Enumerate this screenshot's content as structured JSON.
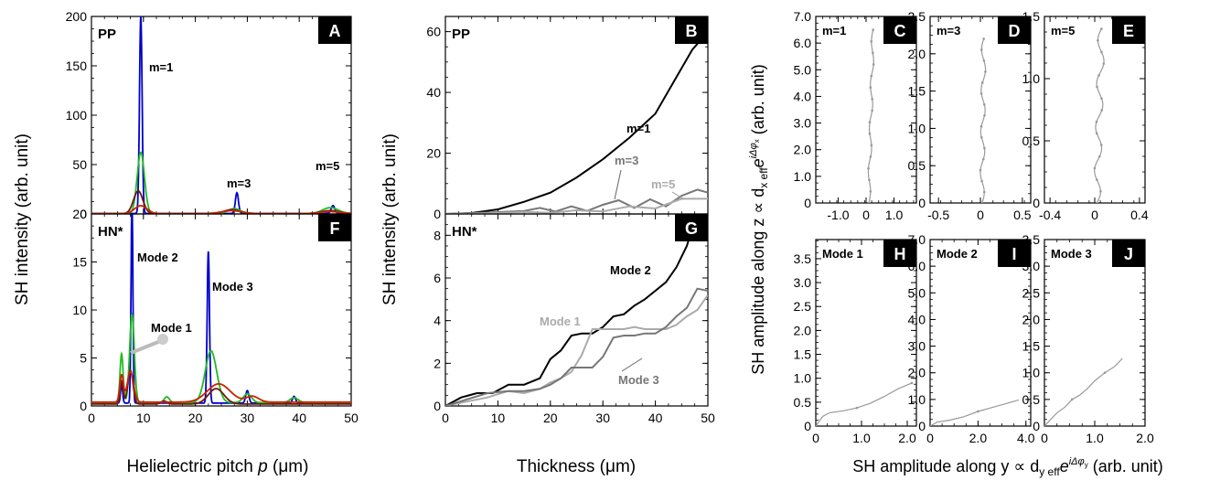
{
  "colors": {
    "blue": "#0000cc",
    "green": "#22bb22",
    "red": "#cc2200",
    "dark": "#6b1a10",
    "black": "#000000",
    "gray": "#777777",
    "lightgray": "#aaaaaa",
    "trace": "#999999"
  },
  "labels": {
    "pitch_axis_left": "Helielectric pitch ",
    "pitch_axis_var": "p",
    "pitch_axis_unit": " (μm)",
    "sh_intensity": "SH intensity (arb. unit)",
    "thickness_axis": "Thickness (μm)",
    "amp_y": "SH amplitude along y ∝ d",
    "amp_y_sub": "y eff",
    "amp_y_exp": "iΔφ",
    "amp_y_exp_sub": "y",
    "amp_y_tail": " (arb. unit)",
    "amp_z": "SH amplitude along z ∝ d",
    "amp_z_sub": "x eff",
    "amp_z_exp": "iΔφ",
    "amp_z_exp_sub": "x",
    "e": "e"
  },
  "chart_data": [
    {
      "id": "A",
      "type": "line",
      "title": "PP",
      "xlim": [
        0,
        50
      ],
      "ylim": [
        0,
        200
      ],
      "xticks": [
        0,
        10,
        20,
        30,
        40,
        50
      ],
      "yticks": [
        0,
        50,
        100,
        150,
        200
      ],
      "annotations": [
        "m=1",
        "m=3",
        "m=5"
      ],
      "series": [
        {
          "name": "blue",
          "peaks": [
            [
              9.5,
              200,
              0.25
            ],
            [
              28,
              21,
              0.3
            ],
            [
              46.5,
              8,
              0.35
            ]
          ],
          "baseline": 0.5
        },
        {
          "name": "green",
          "peaks": [
            [
              9.5,
              62,
              0.7
            ],
            [
              27.5,
              5,
              1.2
            ],
            [
              46,
              6,
              1.5
            ]
          ],
          "baseline": 0.4
        },
        {
          "name": "dark",
          "peaks": [
            [
              9,
              23,
              0.9
            ],
            [
              27,
              4,
              1.5
            ],
            [
              46,
              3,
              1.8
            ]
          ],
          "baseline": 0.3
        },
        {
          "name": "red",
          "peaks": [
            [
              9.5,
              8,
              1.2
            ],
            [
              27,
              3,
              2
            ],
            [
              46,
              2,
              2
            ]
          ],
          "baseline": 0.3
        }
      ]
    },
    {
      "id": "F",
      "type": "line",
      "title": "HN*",
      "xlim": [
        0,
        50
      ],
      "ylim": [
        0,
        20
      ],
      "xticks": [
        0,
        10,
        20,
        30,
        40,
        50
      ],
      "yticks": [
        0,
        5,
        10,
        15,
        20
      ],
      "annotations": [
        "Mode 2",
        "Mode 3",
        "Mode 1"
      ],
      "series": [
        {
          "name": "blue",
          "peaks": [
            [
              7.8,
              21,
              0.18
            ],
            [
              22.5,
              15.8,
              0.22
            ],
            [
              30,
              1.3,
              0.3
            ],
            [
              5.8,
              2,
              0.2
            ],
            [
              39,
              0.7,
              0.3
            ]
          ],
          "baseline": 0.3
        },
        {
          "name": "green",
          "peaks": [
            [
              7.8,
              9.2,
              0.45
            ],
            [
              5.8,
              5.1,
              0.3
            ],
            [
              23,
              5.4,
              1.1
            ],
            [
              30,
              0.9,
              0.8
            ],
            [
              14.5,
              0.6,
              0.5
            ],
            [
              39,
              0.5,
              0.8
            ]
          ],
          "baseline": 0.35
        },
        {
          "name": "dark",
          "peaks": [
            [
              7.5,
              3.5,
              0.5
            ],
            [
              5.8,
              2.4,
              0.3
            ],
            [
              24,
              1.6,
              1.5
            ],
            [
              14,
              0.3,
              0.6
            ]
          ],
          "baseline": 0.2
        },
        {
          "name": "red",
          "peaks": [
            [
              7.5,
              3.2,
              0.6
            ],
            [
              5.8,
              2.8,
              0.35
            ],
            [
              24.5,
              1.9,
              2.2
            ],
            [
              31,
              0.6,
              1.2
            ]
          ],
          "baseline": 0.4
        }
      ]
    },
    {
      "id": "B",
      "type": "line",
      "title": "PP",
      "xlim": [
        0,
        50
      ],
      "ylim": [
        0,
        65
      ],
      "xticks": [
        0,
        10,
        20,
        30,
        40,
        50
      ],
      "yticks": [
        0,
        20,
        40,
        60
      ],
      "annotations": [
        "m=1",
        "m=3",
        "m=5"
      ],
      "series": [
        {
          "name": "m=1",
          "color": "black",
          "x": [
            0,
            5,
            10,
            15,
            20,
            25,
            30,
            35,
            40,
            45,
            47,
            50
          ],
          "y": [
            0,
            0.3,
            1.5,
            4,
            7,
            12,
            18,
            25,
            33,
            48,
            54,
            60
          ]
        },
        {
          "name": "m=3",
          "color": "gray",
          "x": [
            0,
            5,
            10,
            15,
            18,
            21,
            24,
            27,
            30,
            33,
            36,
            39,
            42,
            45,
            48,
            50
          ],
          "y": [
            0,
            0.2,
            0.6,
            1,
            2,
            0.8,
            2.5,
            1,
            3,
            4.5,
            2,
            4.8,
            2.5,
            6,
            8,
            7
          ]
        },
        {
          "name": "m=5",
          "color": "lightgray",
          "x": [
            0,
            5,
            10,
            15,
            20,
            25,
            30,
            35,
            40,
            45,
            50
          ],
          "y": [
            0,
            0.1,
            0.3,
            0.7,
            0.4,
            1.2,
            0.8,
            2.5,
            1.8,
            5,
            5
          ]
        }
      ]
    },
    {
      "id": "G",
      "type": "line",
      "title": "HN*",
      "xlim": [
        0,
        50
      ],
      "ylim": [
        0,
        9
      ],
      "xticks": [
        0,
        10,
        20,
        30,
        40,
        50
      ],
      "yticks": [
        0,
        2,
        4,
        6,
        8
      ],
      "annotations": [
        "Mode 2",
        "Mode 1",
        "Mode 3"
      ],
      "series": [
        {
          "name": "Mode 2",
          "color": "black",
          "x": [
            0,
            3,
            6,
            9,
            12,
            15,
            18,
            20,
            22,
            24,
            26,
            28,
            30,
            32,
            34,
            36,
            38,
            40,
            42,
            44,
            46,
            47
          ],
          "y": [
            0,
            0.4,
            0.6,
            0.6,
            1,
            1,
            1.3,
            2.2,
            2.6,
            3.3,
            3.4,
            3.4,
            3.7,
            4.2,
            4.3,
            4.7,
            5,
            5.4,
            5.8,
            6.5,
            7.5,
            8.3
          ]
        },
        {
          "name": "Mode 1",
          "color": "lightgray",
          "x": [
            0,
            4,
            8,
            12,
            15,
            18,
            20,
            22,
            24,
            26,
            28,
            30,
            32,
            34,
            36,
            38,
            40,
            42,
            44,
            46,
            48,
            50
          ],
          "y": [
            0,
            0.2,
            0.4,
            0.7,
            0.6,
            0.8,
            1.1,
            1.3,
            1.6,
            2.4,
            3.6,
            3.6,
            3.6,
            3.6,
            3.7,
            3.6,
            3.6,
            3.6,
            3.8,
            4.2,
            4.5,
            5.2
          ]
        },
        {
          "name": "Mode 3",
          "color": "gray",
          "x": [
            0,
            4,
            8,
            12,
            15,
            18,
            20,
            22,
            24,
            26,
            28,
            30,
            32,
            34,
            36,
            38,
            40,
            42,
            44,
            46,
            48,
            50
          ],
          "y": [
            0,
            0.3,
            0.6,
            0.7,
            0.7,
            0.8,
            1,
            1.3,
            1.8,
            1.8,
            1.8,
            2.3,
            3.2,
            3.3,
            3.3,
            3.4,
            3.4,
            3.7,
            4.2,
            4.6,
            5.5,
            5.4
          ]
        }
      ]
    },
    {
      "id": "C",
      "type": "line",
      "title": "m=1",
      "xlim": [
        -1.8,
        1.8
      ],
      "ylim": [
        0,
        7
      ],
      "xticks": [
        -1.0,
        0,
        1.0
      ],
      "xtick_labels": [
        "-1.0",
        "0",
        "1.0"
      ],
      "yticks": [
        0,
        1,
        2,
        3,
        4,
        5,
        6,
        7
      ],
      "ytick_labels": [
        "0",
        "1.0",
        "2.0",
        "3.0",
        "4.0",
        "5.0",
        "6.0",
        "7.0"
      ],
      "series": [
        {
          "name": "trace",
          "wiggle": 0.05,
          "x0": 0.1,
          "x1": 0.25,
          "ymax": 6.5,
          "n": 18
        }
      ]
    },
    {
      "id": "D",
      "type": "line",
      "title": "m=3",
      "xlim": [
        -0.6,
        0.6
      ],
      "ylim": [
        0,
        2.5
      ],
      "xticks": [
        -0.5,
        0,
        0.5
      ],
      "xtick_labels": [
        "-0.5",
        "0",
        "0.5"
      ],
      "yticks": [
        0,
        0.5,
        1,
        1.5,
        2,
        2.5
      ],
      "ytick_labels": [
        "0",
        "0.5",
        "1.0",
        "1.5",
        "2.0",
        "2.5"
      ],
      "series": [
        {
          "name": "trace",
          "wiggle": 0.025,
          "x0": 0.02,
          "x1": 0.04,
          "ymax": 2.2,
          "n": 18
        }
      ]
    },
    {
      "id": "E",
      "type": "line",
      "title": "m=5",
      "xlim": [
        -0.45,
        0.45
      ],
      "ylim": [
        0,
        1.5
      ],
      "xticks": [
        -0.4,
        0,
        0.4
      ],
      "xtick_labels": [
        "-0.4",
        "0",
        "0.4"
      ],
      "yticks": [
        0,
        0.5,
        1,
        1.5
      ],
      "ytick_labels": [
        "0",
        "0.5",
        "1.0",
        "1.5"
      ],
      "series": [
        {
          "name": "trace",
          "wiggle": 0.03,
          "x0": 0.02,
          "x1": 0.06,
          "ymax": 1.4,
          "n": 18
        }
      ]
    },
    {
      "id": "H",
      "type": "line",
      "title": "Mode 1",
      "xlim": [
        0,
        2.2
      ],
      "ylim": [
        0,
        3.9
      ],
      "xticks": [
        0,
        1,
        2
      ],
      "xtick_labels": [
        "0",
        "1.0",
        "2.0"
      ],
      "yticks": [
        0,
        0.5,
        1,
        1.5,
        2,
        2.5,
        3,
        3.5
      ],
      "ytick_labels": [
        "0",
        "0.5",
        "1.0",
        "1.5",
        "2.0",
        "2.5",
        "3.0",
        "3.5"
      ],
      "series": [
        {
          "name": "trace",
          "x": [
            0,
            0.15,
            0.3,
            0.6,
            0.9,
            1.2,
            1.5,
            1.8,
            2.1
          ],
          "y": [
            0,
            0.2,
            0.28,
            0.32,
            0.38,
            0.48,
            0.62,
            0.78,
            0.9
          ]
        }
      ]
    },
    {
      "id": "I",
      "type": "line",
      "title": "Mode 2",
      "xlim": [
        0,
        4.2
      ],
      "ylim": [
        0,
        7
      ],
      "xticks": [
        0,
        2,
        4
      ],
      "xtick_labels": [
        "0",
        "2.0",
        "4.0"
      ],
      "yticks": [
        0,
        1,
        2,
        3,
        4,
        5,
        6,
        7
      ],
      "ytick_labels": [
        "0",
        "1.0",
        "2.0",
        "3.0",
        "4.0",
        "5.0",
        "6.0",
        "7.0"
      ],
      "series": [
        {
          "name": "trace",
          "x": [
            0,
            0.3,
            0.8,
            1.4,
            2.0,
            2.6,
            3.2,
            3.7
          ],
          "y": [
            0,
            0.15,
            0.22,
            0.35,
            0.55,
            0.7,
            0.85,
            0.98
          ]
        }
      ]
    },
    {
      "id": "J",
      "type": "line",
      "title": "Mode 3",
      "xlim": [
        0,
        2.0
      ],
      "ylim": [
        0,
        3.5
      ],
      "xticks": [
        0,
        1,
        2
      ],
      "xtick_labels": [
        "0",
        "1.0",
        "2.0"
      ],
      "yticks": [
        0,
        0.5,
        1,
        1.5,
        2,
        2.5,
        3,
        3.5
      ],
      "ytick_labels": [
        "0",
        "0.5",
        "1.0",
        "1.5",
        "2.0",
        "2.5",
        "3.0",
        "3.5"
      ],
      "series": [
        {
          "name": "trace",
          "x": [
            0,
            0.1,
            0.25,
            0.4,
            0.55,
            0.7,
            0.85,
            1.0,
            1.2,
            1.4,
            1.55
          ],
          "y": [
            0,
            0.1,
            0.25,
            0.35,
            0.5,
            0.58,
            0.7,
            0.85,
            1.0,
            1.12,
            1.27
          ]
        }
      ]
    }
  ]
}
